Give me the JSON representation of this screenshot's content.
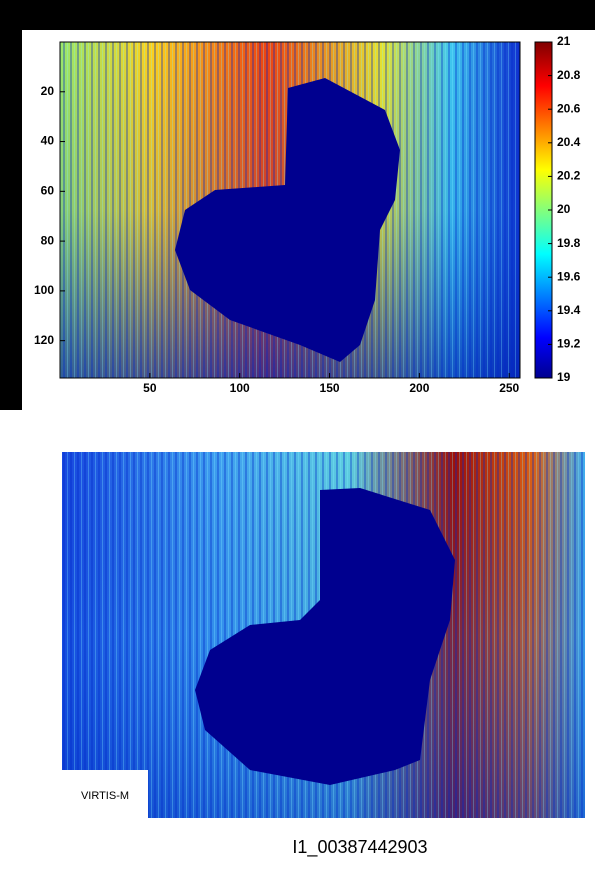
{
  "chart_data": [
    {
      "type": "heatmap",
      "xlim": [
        0,
        256
      ],
      "ylim": [
        0,
        135
      ],
      "y_inverted": true,
      "xticks": [
        50,
        100,
        150,
        200,
        250
      ],
      "yticks": [
        20,
        40,
        60,
        80,
        100,
        120
      ],
      "colorbar": {
        "lim": [
          19,
          21
        ],
        "ticks": [
          19,
          19.2,
          19.4,
          19.6,
          19.8,
          20,
          20.2,
          20.4,
          20.6,
          20.8,
          21
        ]
      }
    },
    {
      "type": "image",
      "label": "VIRTIS-M",
      "caption": "I1_00387442903"
    }
  ]
}
